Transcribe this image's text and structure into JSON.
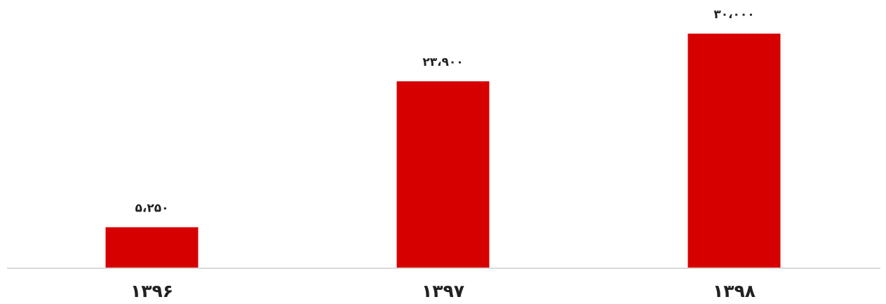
{
  "chart_data": {
    "type": "bar",
    "title": "",
    "xlabel": "",
    "ylabel": "",
    "categories": [
      "۱۳۹۶",
      "۱۳۹۷",
      "۱۳۹۸"
    ],
    "values": [
      5250,
      23900,
      30000
    ],
    "data_labels": [
      "۵،۲۵۰",
      "۲۳،۹۰۰",
      "۳۰،۰۰۰"
    ],
    "ylim": [
      0,
      30000
    ],
    "grid": false,
    "legend": "none",
    "colors": {
      "bar": "#d60000",
      "axis": "#d9d9d9",
      "text": "#222222"
    }
  }
}
